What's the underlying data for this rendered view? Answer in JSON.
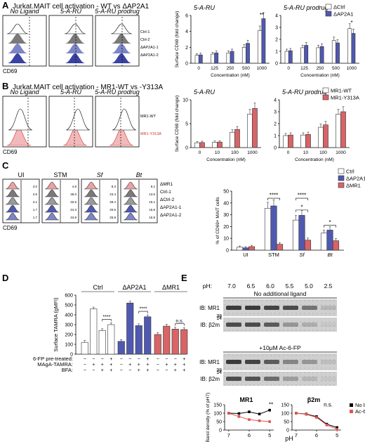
{
  "panels": {
    "A": {
      "letter": "A",
      "title": "Jurkat.MAIT cell activation - WT vs ΔAP2A1",
      "hist_titles": [
        "No Ligand",
        "5-A-RU",
        "5-A-RU prodrug"
      ],
      "legend": [
        "Ctrl-1",
        "Ctrl-2",
        "ΔAP2A1-1",
        "ΔAP2A1-2"
      ],
      "xlabel": "CD69"
    },
    "B": {
      "letter": "B",
      "title": "Jurkat.MAIT cell activation - MR1-WT vs -Y313A",
      "hist_titles": [
        "No Ligand",
        "5-A-RU",
        "5-A-RU prodrug"
      ],
      "legend": [
        "MR1-WT",
        "MR1-Y313A"
      ],
      "xlabel": "CD69"
    },
    "C": {
      "letter": "C",
      "hist_titles": [
        "UI",
        "STM",
        "Sf",
        "Bt"
      ],
      "row_labels": [
        "ΔMR1",
        "Ctrl-1",
        "ΔCtrl-2",
        "ΔAP2A1-1",
        "ΔAP2A1-2"
      ],
      "values": [
        [
          "3.0",
          "2.6",
          "3.1",
          "1.7",
          "1.7"
        ],
        [
          "4.8",
          "36.0",
          "32.6",
          "24.3",
          "34.8"
        ],
        [
          "8.3",
          "23.4",
          "28.4",
          "20.6",
          "25.8"
        ],
        [
          "9.1",
          "13.6",
          "15.1",
          "16.8",
          "16.9"
        ]
      ],
      "xlabel": "CD69"
    },
    "D": {
      "letter": "D"
    },
    "E": {
      "letter": "E",
      "ph_label": "pH:",
      "ph_values": [
        "7.0",
        "6.5",
        "6.0",
        "5.5",
        "5.0",
        "2.5"
      ],
      "section1": "No additional ligand",
      "section2": "+10μM Ac-6-FP",
      "ib_mr1": "IB: MR1",
      "ib_b2m": "IB: β2m",
      "mw": [
        "38",
        "14"
      ]
    }
  },
  "chart_data": [
    {
      "id": "A-left",
      "type": "bar",
      "title": "5-A-RU",
      "categories": [
        "0",
        "125",
        "250",
        "500",
        "1000"
      ],
      "series": [
        {
          "name": "ΔCtrl",
          "values": [
            1.0,
            1.15,
            1.3,
            2.0,
            4.1
          ]
        },
        {
          "name": "ΔAP2A1",
          "values": [
            1.05,
            1.3,
            1.5,
            2.5,
            5.6
          ]
        }
      ],
      "ylabel": "Surface CD69 (fold change)",
      "xlabel": "Concentration (nM)",
      "yticks": [
        0,
        2,
        4,
        6
      ],
      "ylim": [
        0,
        6
      ],
      "significance": [
        {
          "category": "1000",
          "label": "**"
        }
      ]
    },
    {
      "id": "A-right",
      "type": "bar",
      "title": "5-A-RU prodrug",
      "categories": [
        "0",
        "125",
        "250",
        "500",
        "1000"
      ],
      "series": [
        {
          "name": "ΔCtrl",
          "values": [
            1.0,
            1.3,
            1.3,
            1.9,
            2.9
          ]
        },
        {
          "name": "ΔAP2A1",
          "values": [
            1.05,
            1.5,
            1.4,
            1.7,
            2.5
          ]
        }
      ],
      "xlabel": "Concentration (nM)",
      "yticks": [
        0,
        1,
        2,
        3,
        4
      ],
      "ylim": [
        0,
        4
      ],
      "significance": [
        {
          "category": "1000",
          "label": "*"
        }
      ]
    },
    {
      "id": "B-left",
      "type": "bar",
      "title": "5-A-RU",
      "categories": [
        "0",
        "10",
        "100",
        "1000"
      ],
      "series": [
        {
          "name": "MR1-WT",
          "values": [
            1.0,
            1.1,
            3.2,
            7.0
          ]
        },
        {
          "name": "MR1-Y313A",
          "values": [
            1.05,
            1.15,
            3.8,
            8.2
          ]
        }
      ],
      "ylabel": "Surface CD69 (fold change)",
      "xlabel": "Concentration (nM)",
      "yticks": [
        0,
        5,
        10
      ],
      "ylim": [
        0,
        10
      ]
    },
    {
      "id": "B-right",
      "type": "bar",
      "title": "5-A-RU prodrug",
      "categories": [
        "0",
        "10",
        "100",
        "1000"
      ],
      "series": [
        {
          "name": "MR1-WT",
          "values": [
            1.0,
            1.05,
            1.7,
            2.8
          ]
        },
        {
          "name": "MR1-Y313A",
          "values": [
            1.05,
            1.1,
            1.9,
            3.0
          ]
        }
      ],
      "xlabel": "Concentration (nM)",
      "yticks": [
        0,
        1,
        2,
        3,
        4
      ],
      "ylim": [
        0,
        4
      ]
    },
    {
      "id": "C",
      "type": "bar",
      "categories": [
        "UI",
        "STM",
        "Sf",
        "Bt"
      ],
      "series": [
        {
          "name": "Ctrl",
          "values": [
            2.5,
            35.5,
            25.5,
            14.5
          ]
        },
        {
          "name": "ΔAP2A1",
          "values": [
            2.0,
            37.5,
            29.5,
            17.0
          ]
        },
        {
          "name": "ΔMR1",
          "values": [
            3.0,
            5.0,
            8.5,
            8.0
          ]
        }
      ],
      "ylabel": "% of CD69+ MAIT cells",
      "yticks": [
        0,
        10,
        20,
        30,
        40,
        50
      ],
      "ylim": [
        0,
        50
      ],
      "significance": [
        {
          "category": "STM",
          "label": "****"
        },
        {
          "category": "Sf",
          "label": "****"
        },
        {
          "category": "Sf",
          "label": "*"
        },
        {
          "category": "Bt",
          "label": "*"
        }
      ]
    },
    {
      "id": "D",
      "type": "bar",
      "groups": [
        "Ctrl",
        "ΔAP2A1",
        "ΔMR1"
      ],
      "group_colors": [
        "#ffffff",
        "#5059b0",
        "#d86466"
      ],
      "series": [
        {
          "group": "Ctrl",
          "values": [
            120,
            460,
            240,
            300
          ]
        },
        {
          "group": "ΔAP2A1",
          "values": [
            130,
            520,
            290,
            380
          ]
        },
        {
          "group": "ΔMR1",
          "values": [
            200,
            285,
            255,
            250
          ]
        }
      ],
      "ylabel": "Surface TAMRA (gMFI)",
      "yticks": [
        0,
        100,
        200,
        300,
        400,
        500,
        600
      ],
      "ylim": [
        0,
        600
      ],
      "conditions": {
        "labels": [
          "6-FP pre-treated:",
          "MAgA-TAMRA:",
          "BFA:"
        ],
        "rows": [
          [
            "−",
            "−",
            "−",
            "+"
          ],
          [
            "−",
            "+",
            "+",
            "+"
          ],
          [
            "−",
            "−",
            "+",
            "+"
          ]
        ]
      },
      "significance": [
        {
          "group": "Ctrl",
          "label": "****"
        },
        {
          "group": "ΔAP2A1",
          "label": "****"
        },
        {
          "group": "ΔMR1",
          "label": "n.s."
        }
      ]
    },
    {
      "id": "E-MR1",
      "type": "line",
      "title": "MR1",
      "x": [
        7.0,
        6.5,
        6.0,
        5.5,
        5.0
      ],
      "series": [
        {
          "name": "No ligand",
          "values": [
            100,
            98,
            108,
            95,
            118
          ]
        },
        {
          "name": "Ac-6-FP",
          "values": [
            100,
            80,
            62,
            55,
            50
          ]
        }
      ],
      "ylabel": "Band density (% of pH7)",
      "xlabel": "pH",
      "xticks": [
        7,
        6,
        5
      ],
      "yticks": [
        0,
        50,
        100,
        150
      ],
      "ylim": [
        0,
        150
      ],
      "significance": [
        {
          "x": 5.0,
          "label": "**"
        }
      ]
    },
    {
      "id": "E-b2m",
      "type": "line",
      "title": "β2m",
      "x": [
        7.0,
        6.5,
        6.0,
        5.5,
        5.0
      ],
      "series": [
        {
          "name": "No ligand",
          "values": [
            100,
            95,
            80,
            35,
            15
          ]
        },
        {
          "name": "Ac-6-FP",
          "values": [
            100,
            93,
            75,
            30,
            5
          ]
        }
      ],
      "xticks": [
        7,
        6,
        5
      ],
      "yticks": [
        0,
        50,
        100,
        150
      ],
      "ylim": [
        0,
        150
      ],
      "significance": [
        {
          "x": 5.5,
          "label": "n.s."
        }
      ]
    }
  ]
}
